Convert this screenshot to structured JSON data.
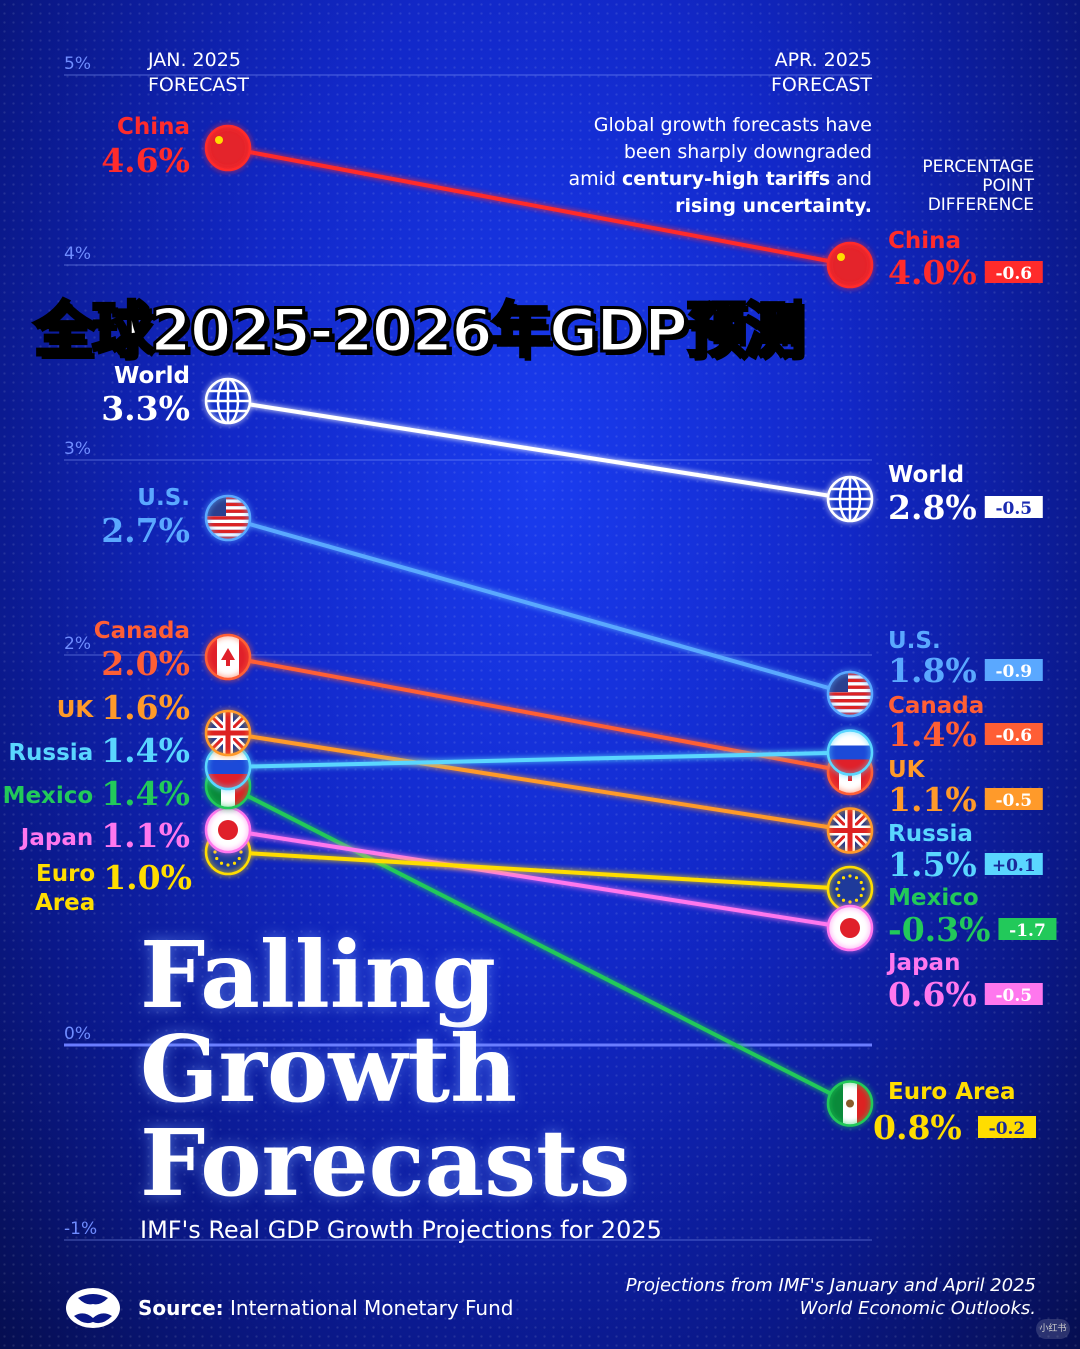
{
  "chart_data": {
    "type": "line",
    "subtype": "slope",
    "title": "Falling Growth Forecasts",
    "title_lines": [
      "Falling",
      "Growth",
      "Forecasts"
    ],
    "subtitle": "IMF's Real GDP Growth Projections for 2025",
    "overlay_title": "全球2025-2026年GDP预测",
    "x": [
      "JAN. 2025 FORECAST",
      "APR. 2025 FORECAST"
    ],
    "x_labels": [
      [
        "JAN. 2025",
        "FORECAST"
      ],
      [
        "APR. 2025",
        "FORECAST"
      ]
    ],
    "y_ticks": [
      "5%",
      "4%",
      "3%",
      "2%",
      "0%",
      "-1%"
    ],
    "y_tick_values": [
      5,
      4,
      3,
      2,
      0,
      -1
    ],
    "ylim": [
      -1,
      5
    ],
    "grid": true,
    "difference_header": [
      "PERCENTAGE",
      "POINT",
      "DIFFERENCE"
    ],
    "annotation": [
      "Global growth forecasts have",
      "been sharply downgraded",
      "amid century-high tariffs and",
      "rising uncertainty."
    ],
    "series": [
      {
        "name": "China",
        "jan": 4.6,
        "apr": 4.0,
        "jan_label": "4.6%",
        "apr_label": "4.0%",
        "diff": "-0.6",
        "color": "#ff2b2b",
        "flag": "china-flag"
      },
      {
        "name": "World",
        "jan": 3.3,
        "apr": 2.8,
        "jan_label": "3.3%",
        "apr_label": "2.8%",
        "diff": "-0.5",
        "color": "#ffffff",
        "flag": "globe"
      },
      {
        "name": "U.S.",
        "jan": 2.7,
        "apr": 1.8,
        "jan_label": "2.7%",
        "apr_label": "1.8%",
        "diff": "-0.9",
        "color": "#5aa8ff",
        "flag": "us-flag"
      },
      {
        "name": "Canada",
        "jan": 2.0,
        "apr": 1.4,
        "jan_label": "2.0%",
        "apr_label": "1.4%",
        "diff": "-0.6",
        "color": "#ff5e35",
        "flag": "canada-flag"
      },
      {
        "name": "UK",
        "jan": 1.6,
        "apr": 1.1,
        "jan_label": "1.6%",
        "apr_label": "1.1%",
        "diff": "-0.5",
        "color": "#ff9a2a",
        "flag": "uk-flag"
      },
      {
        "name": "Russia",
        "jan": 1.4,
        "apr": 1.5,
        "jan_label": "1.4%",
        "apr_label": "1.5%",
        "diff": "+0.1",
        "color": "#5ad6ff",
        "flag": "russia-flag"
      },
      {
        "name": "Mexico",
        "jan": 1.4,
        "apr": -0.3,
        "jan_label": "1.4%",
        "apr_label": "-0.3%",
        "diff": "-1.7",
        "color": "#22c95a",
        "flag": "mexico-flag"
      },
      {
        "name": "Japan",
        "jan": 1.1,
        "apr": 0.6,
        "jan_label": "1.1%",
        "apr_label": "0.6%",
        "diff": "-0.5",
        "color": "#ff77ee",
        "flag": "japan-flag"
      },
      {
        "name": "Euro Area",
        "jan": 1.0,
        "apr": 0.8,
        "jan_label": "1.0%",
        "apr_label": "0.8%",
        "diff": "-0.2",
        "color": "#ffdd00",
        "flag": "eu-flag"
      }
    ]
  },
  "footer": {
    "source_label": "Source:",
    "source_value": "International Monetary Fund",
    "note": [
      "Projections from IMF's January and April 2025",
      "World Economic Outlooks."
    ],
    "watermark": "小红书"
  }
}
